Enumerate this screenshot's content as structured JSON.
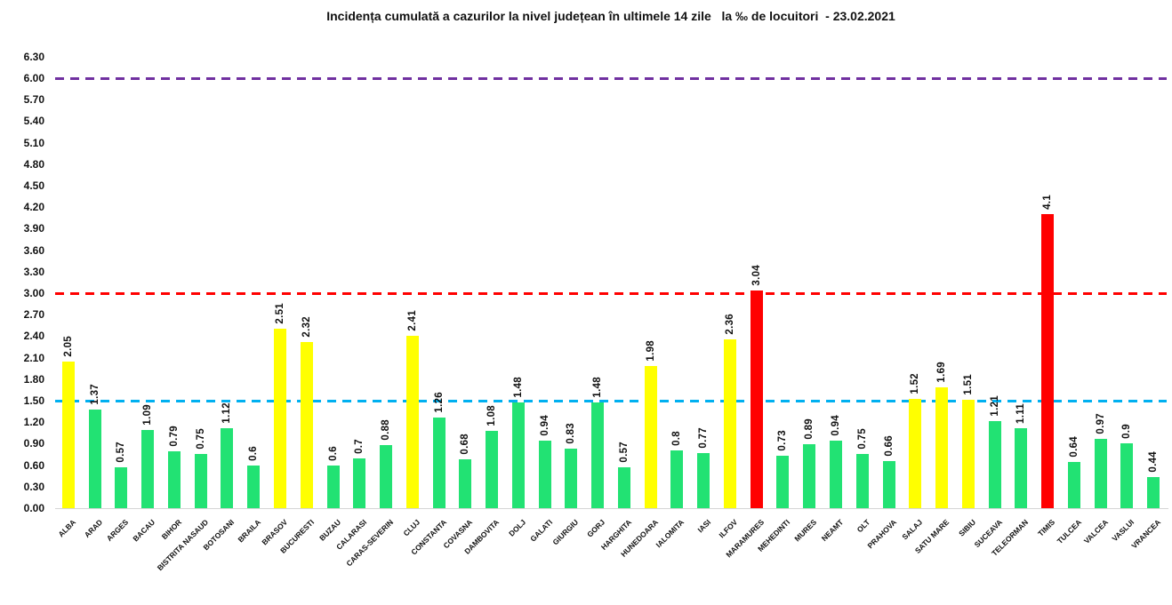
{
  "title": "Incidența cumulată a cazurilor la nivel județean în ultimele 14 zile   la ‰ de locuitori  - 23.02.2021",
  "chart_data": {
    "type": "bar",
    "title": "Incidența cumulată a cazurilor la nivel județean în ultimele 14 zile   la ‰ de locuitori  - 23.02.2021",
    "xlabel": "",
    "ylabel": "",
    "categories": [
      "ALBA",
      "ARAD",
      "ARGES",
      "BACAU",
      "BIHOR",
      "BISTRITA NASAUD",
      "BOTOSANI",
      "BRAILA",
      "BRASOV",
      "BUCURESTI",
      "BUZAU",
      "CALARASI",
      "CARAS-SEVERIN",
      "CLUJ",
      "CONSTANTA",
      "COVASNA",
      "DAMBOVITA",
      "DOLJ",
      "GALATI",
      "GIURGIU",
      "GORJ",
      "HARGHITA",
      "HUNEDOARA",
      "IALOMITA",
      "IASI",
      "ILFOV",
      "MARAMURES",
      "MEHEDINTI",
      "MURES",
      "NEAMT",
      "OLT",
      "PRAHOVA",
      "SALAJ",
      "SATU MARE",
      "SIBIU",
      "SUCEAVA",
      "TELEORMAN",
      "TIMIS",
      "TULCEA",
      "VALCEA",
      "VASLUI",
      "VRANCEA"
    ],
    "values": [
      2.05,
      1.37,
      0.57,
      1.09,
      0.79,
      0.75,
      1.12,
      0.6,
      2.51,
      2.32,
      0.6,
      0.7,
      0.88,
      2.41,
      1.26,
      0.68,
      1.08,
      1.48,
      0.94,
      0.83,
      1.48,
      0.57,
      1.98,
      0.8,
      0.77,
      2.36,
      3.04,
      0.73,
      0.89,
      0.94,
      0.75,
      0.66,
      1.52,
      1.69,
      1.51,
      1.21,
      1.11,
      4.1,
      0.64,
      0.97,
      0.9,
      0.44
    ],
    "ylim": [
      0,
      6.3
    ],
    "ytick_step": 0.3,
    "ytick_decimals": 2,
    "grid": false,
    "legend": "none",
    "value_labels": "rotated-vertical",
    "category_labels": "rotated-45",
    "bar_colors": {
      "green": "#22E273",
      "yellow": "#FFFF00",
      "red": "#FF0000"
    },
    "color_thresholds": {
      "yellow_min": 1.5,
      "red_min": 3.0
    },
    "reference_lines": [
      {
        "value": 6.0,
        "color": "#7030A0",
        "style": "dashed"
      },
      {
        "value": 3.0,
        "color": "#FF0000",
        "style": "dashed"
      },
      {
        "value": 1.5,
        "color": "#00B0F0",
        "style": "dashed"
      }
    ]
  }
}
